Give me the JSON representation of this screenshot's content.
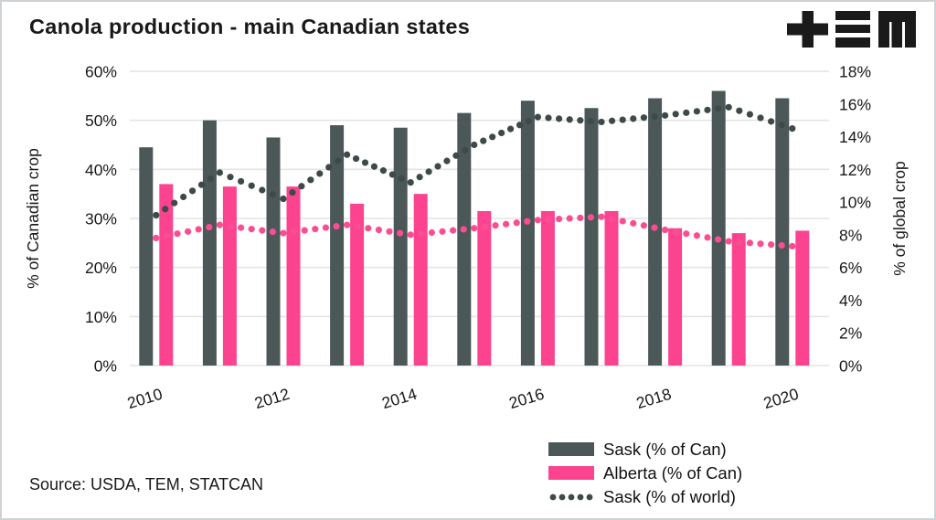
{
  "header": {
    "title": "Canola production - main Canadian states",
    "logo_name": "TEM logo (plus, triple-bar, M glyphs)"
  },
  "footer": {
    "source": "Source: USDA, TEM, STATCAN"
  },
  "colors": {
    "sask_bar": "#4b5857",
    "alberta_bar": "#fc4390",
    "sask_dotted": "#3d4a48",
    "pink_dotted": "#fb4d92",
    "gridline": "#e4e4e4",
    "text": "#191919",
    "border": "#cfd2d4",
    "background": "#ffffff",
    "logo": "#1a1a1a"
  },
  "chart_data": {
    "type": "bar",
    "title": "Canola production - main Canadian states",
    "categories": [
      "2010",
      "2011",
      "2012",
      "2013",
      "2014",
      "2015",
      "2016",
      "2017",
      "2018",
      "2019",
      "2020"
    ],
    "x_tick_labels": [
      "2010",
      "2012",
      "2014",
      "2016",
      "2018",
      "2020"
    ],
    "left_axis": {
      "label": "% of Canadian crop",
      "ticks": [
        "0%",
        "10%",
        "20%",
        "30%",
        "40%",
        "50%",
        "60%"
      ],
      "min": 0,
      "max": 60
    },
    "right_axis": {
      "label": "% of global crop",
      "ticks": [
        "0%",
        "2%",
        "4%",
        "6%",
        "8%",
        "10%",
        "12%",
        "14%",
        "16%",
        "18%"
      ],
      "min": 0,
      "max": 18
    },
    "grid": "horizontal",
    "legend_position": "bottom-right",
    "series": [
      {
        "name": "Sask (% of Can)",
        "type": "bar",
        "axis": "left",
        "color": "#4b5857",
        "in_legend": true,
        "values": [
          44.5,
          50,
          46.5,
          49,
          48.5,
          51.5,
          54,
          52.5,
          54.5,
          56,
          54.5
        ]
      },
      {
        "name": "Alberta (% of Can)",
        "type": "bar",
        "axis": "left",
        "color": "#fc4390",
        "in_legend": true,
        "values": [
          37,
          36.5,
          36.5,
          33,
          35,
          31.5,
          31.5,
          31.5,
          28,
          27,
          27.5
        ]
      },
      {
        "name": "Sask (% of world)",
        "type": "dotted-line",
        "axis": "right",
        "color": "#3d4a48",
        "in_legend": true,
        "values": [
          9.2,
          11.8,
          10.2,
          12.9,
          11.2,
          13.5,
          15.2,
          14.9,
          15.3,
          15.8,
          14.5
        ]
      },
      {
        "name": "",
        "inferred_name": "unlabeled pink dotted line (right axis)",
        "type": "dotted-line",
        "axis": "right",
        "color": "#fb4d92",
        "in_legend": false,
        "values": [
          7.8,
          8.6,
          8.1,
          8.6,
          8.0,
          8.4,
          8.9,
          9.1,
          8.3,
          7.6,
          7.3
        ]
      }
    ]
  }
}
